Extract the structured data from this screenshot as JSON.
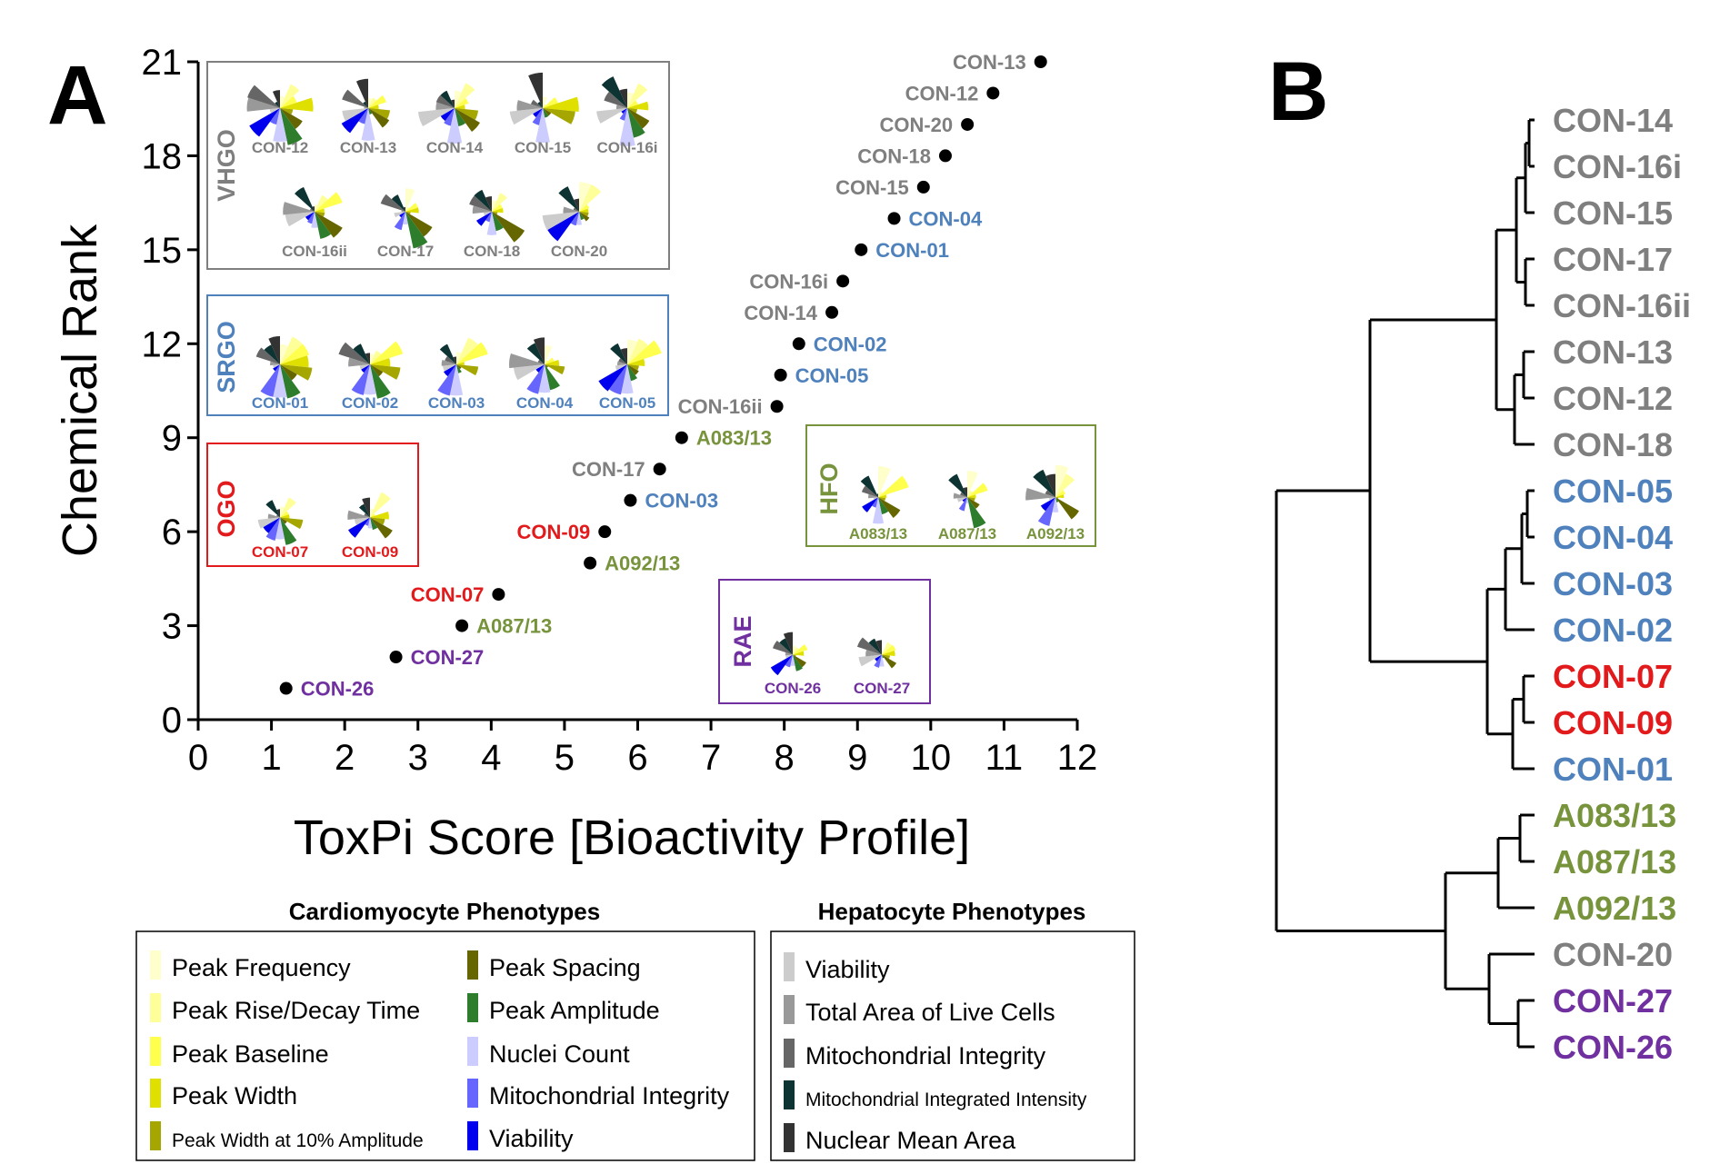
{
  "colors": {
    "VHGO": "#7f7f7f",
    "SRGO": "#4f81bd",
    "OGO": "#e31a1c",
    "HFO": "#77933c",
    "RAE": "#7030a0"
  },
  "panel_a_letter": "A",
  "panel_b_letter": "B",
  "chart_data": [
    {
      "type": "scatter",
      "xlabel": "ToxPi Score [Bioactivity Profile]",
      "ylabel": "Chemical Rank",
      "xlim": [
        0,
        12
      ],
      "ylim": [
        0,
        21
      ],
      "x_ticks": [
        "0",
        "1",
        "2",
        "3",
        "4",
        "5",
        "6",
        "7",
        "8",
        "9",
        "10",
        "11",
        "12"
      ],
      "y_ticks": [
        "0",
        "3",
        "6",
        "9",
        "12",
        "15",
        "18",
        "21"
      ],
      "grid": false,
      "points": [
        {
          "label": "CON-26",
          "x": 1.2,
          "y": 1,
          "group": "RAE"
        },
        {
          "label": "CON-27",
          "x": 2.7,
          "y": 2,
          "group": "RAE"
        },
        {
          "label": "A087/13",
          "x": 3.6,
          "y": 3,
          "group": "HFO"
        },
        {
          "label": "CON-07",
          "x": 4.1,
          "y": 4,
          "group": "OGO"
        },
        {
          "label": "A092/13",
          "x": 5.35,
          "y": 5,
          "group": "HFO"
        },
        {
          "label": "CON-09",
          "x": 5.55,
          "y": 6,
          "group": "OGO"
        },
        {
          "label": "CON-03",
          "x": 5.9,
          "y": 7,
          "group": "SRGO"
        },
        {
          "label": "CON-17",
          "x": 6.3,
          "y": 8,
          "group": "VHGO"
        },
        {
          "label": "A083/13",
          "x": 6.6,
          "y": 9,
          "group": "HFO"
        },
        {
          "label": "CON-16ii",
          "x": 7.9,
          "y": 10,
          "group": "VHGO"
        },
        {
          "label": "CON-05",
          "x": 7.95,
          "y": 11,
          "group": "SRGO"
        },
        {
          "label": "CON-02",
          "x": 8.2,
          "y": 12,
          "group": "SRGO"
        },
        {
          "label": "CON-14",
          "x": 8.65,
          "y": 13,
          "group": "VHGO"
        },
        {
          "label": "CON-16i",
          "x": 8.8,
          "y": 14,
          "group": "VHGO"
        },
        {
          "label": "CON-01",
          "x": 9.05,
          "y": 15,
          "group": "SRGO"
        },
        {
          "label": "CON-04",
          "x": 9.5,
          "y": 16,
          "group": "SRGO"
        },
        {
          "label": "CON-15",
          "x": 9.9,
          "y": 17,
          "group": "VHGO"
        },
        {
          "label": "CON-18",
          "x": 10.2,
          "y": 18,
          "group": "VHGO"
        },
        {
          "label": "CON-20",
          "x": 10.5,
          "y": 19,
          "group": "VHGO"
        },
        {
          "label": "CON-12",
          "x": 10.85,
          "y": 20,
          "group": "VHGO"
        },
        {
          "label": "CON-13",
          "x": 11.5,
          "y": 21,
          "group": "VHGO"
        }
      ],
      "group_boxes": [
        {
          "name": "VHGO",
          "members": [
            "CON-12",
            "CON-13",
            "CON-14",
            "CON-15",
            "CON-16i",
            "CON-16ii",
            "CON-17",
            "CON-18",
            "CON-20"
          ]
        },
        {
          "name": "SRGO",
          "members": [
            "CON-01",
            "CON-02",
            "CON-03",
            "CON-04",
            "CON-05"
          ]
        },
        {
          "name": "OGO",
          "members": [
            "CON-07",
            "CON-09"
          ]
        },
        {
          "name": "HFO",
          "members": [
            "A083/13",
            "A087/13",
            "A092/13"
          ]
        },
        {
          "name": "RAE",
          "members": [
            "CON-26",
            "CON-27"
          ]
        }
      ]
    },
    {
      "type": "dendrogram",
      "leaves": [
        {
          "label": "CON-14",
          "group": "VHGO"
        },
        {
          "label": "CON-16i",
          "group": "VHGO"
        },
        {
          "label": "CON-15",
          "group": "VHGO"
        },
        {
          "label": "CON-17",
          "group": "VHGO"
        },
        {
          "label": "CON-16ii",
          "group": "VHGO"
        },
        {
          "label": "CON-13",
          "group": "VHGO"
        },
        {
          "label": "CON-12",
          "group": "VHGO"
        },
        {
          "label": "CON-18",
          "group": "VHGO"
        },
        {
          "label": "CON-05",
          "group": "SRGO"
        },
        {
          "label": "CON-04",
          "group": "SRGO"
        },
        {
          "label": "CON-03",
          "group": "SRGO"
        },
        {
          "label": "CON-02",
          "group": "SRGO"
        },
        {
          "label": "CON-07",
          "group": "OGO"
        },
        {
          "label": "CON-09",
          "group": "OGO"
        },
        {
          "label": "CON-01",
          "group": "SRGO"
        },
        {
          "label": "A083/13",
          "group": "HFO"
        },
        {
          "label": "A087/13",
          "group": "HFO"
        },
        {
          "label": "A092/13",
          "group": "HFO"
        },
        {
          "label": "CON-20",
          "group": "VHGO"
        },
        {
          "label": "CON-27",
          "group": "RAE"
        },
        {
          "label": "CON-26",
          "group": "RAE"
        }
      ]
    }
  ],
  "legend": {
    "cardio_title": "Cardiomyocyte Phenotypes",
    "hepato_title": "Hepatocyte Phenotypes",
    "cardio_items": [
      {
        "label": "Peak Frequency",
        "color": "#ffffcc"
      },
      {
        "label": "Peak Rise/Decay Time",
        "color": "#ffff99"
      },
      {
        "label": "Peak Baseline",
        "color": "#ffff4d"
      },
      {
        "label": "Peak Width",
        "color": "#e0e000"
      },
      {
        "label": "Peak Width at 10% Amplitude",
        "color": "#a6a600"
      },
      {
        "label": "Peak Spacing",
        "color": "#666600"
      },
      {
        "label": "Peak Amplitude",
        "color": "#2d7d2d"
      },
      {
        "label": "Nuclei Count",
        "color": "#ccccff"
      },
      {
        "label": "Mitochondrial Integrity",
        "color": "#6666ff"
      },
      {
        "label": "Viability",
        "color": "#0000ee"
      }
    ],
    "hepato_items": [
      {
        "label": "Viability",
        "color": "#cccccc"
      },
      {
        "label": "Total Area of Live Cells",
        "color": "#999999"
      },
      {
        "label": "Mitochondrial Integrity",
        "color": "#666666"
      },
      {
        "label": "Mitochondrial Integrated Intensity",
        "color": "#0d3333"
      },
      {
        "label": "Nuclear Mean Area",
        "color": "#333333"
      }
    ]
  }
}
